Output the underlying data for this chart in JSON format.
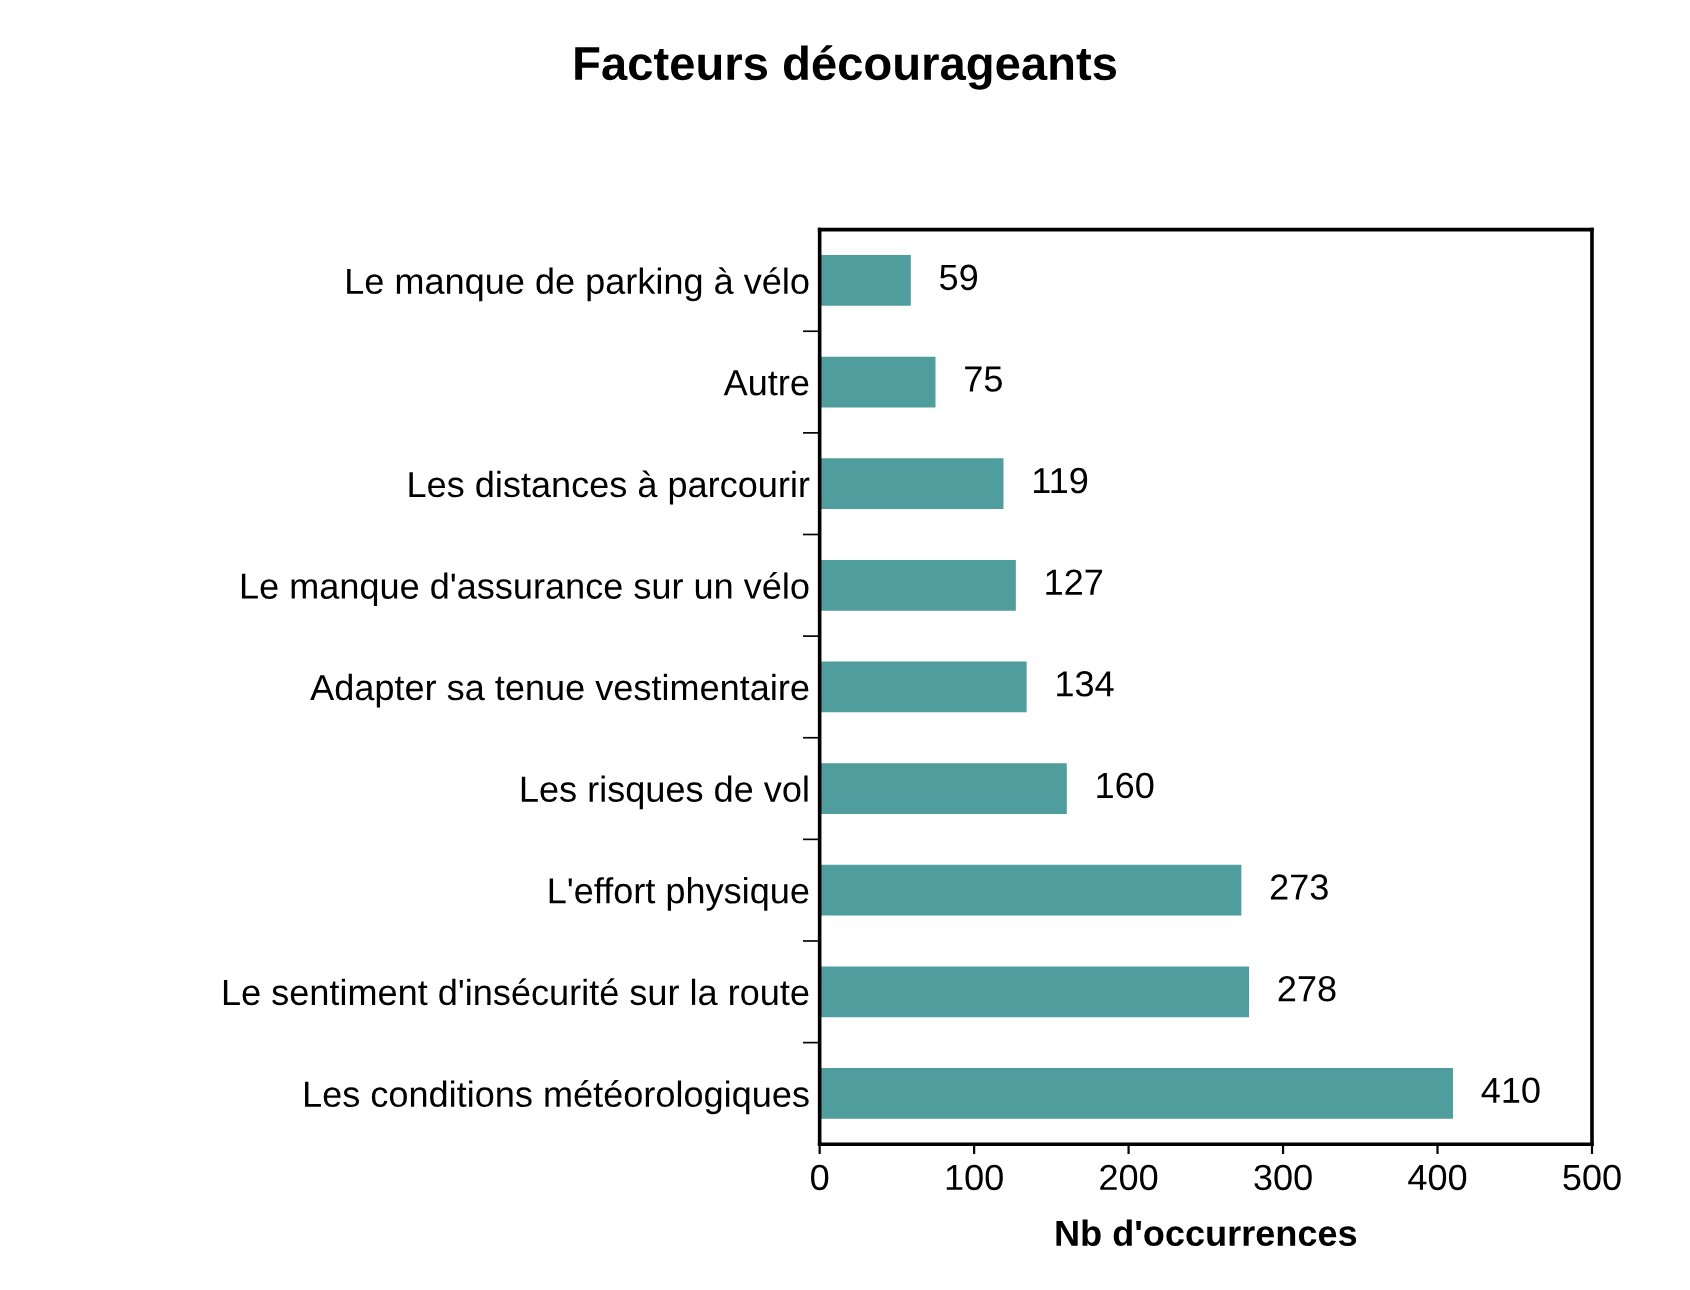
{
  "chart_data": {
    "type": "bar",
    "orientation": "horizontal",
    "title": "Facteurs décourageants",
    "xlabel": "Nb d'occurrences",
    "categories": [
      "Le manque de parking à vélo",
      "Autre",
      "Les distances à parcourir",
      "Le manque d'assurance sur un vélo",
      "Adapter sa tenue vestimentaire",
      "Les risques de vol",
      "L'effort physique",
      "Le sentiment d'insécurité sur la route",
      "Les conditions météorologiques"
    ],
    "values": [
      59,
      75,
      119,
      127,
      134,
      160,
      273,
      278,
      410
    ],
    "color": "#4f9d9d",
    "xlim": [
      0,
      500
    ],
    "xticks": [
      0,
      100,
      200,
      300,
      400,
      500
    ],
    "data_labels": true,
    "grid": false,
    "legend": false
  }
}
